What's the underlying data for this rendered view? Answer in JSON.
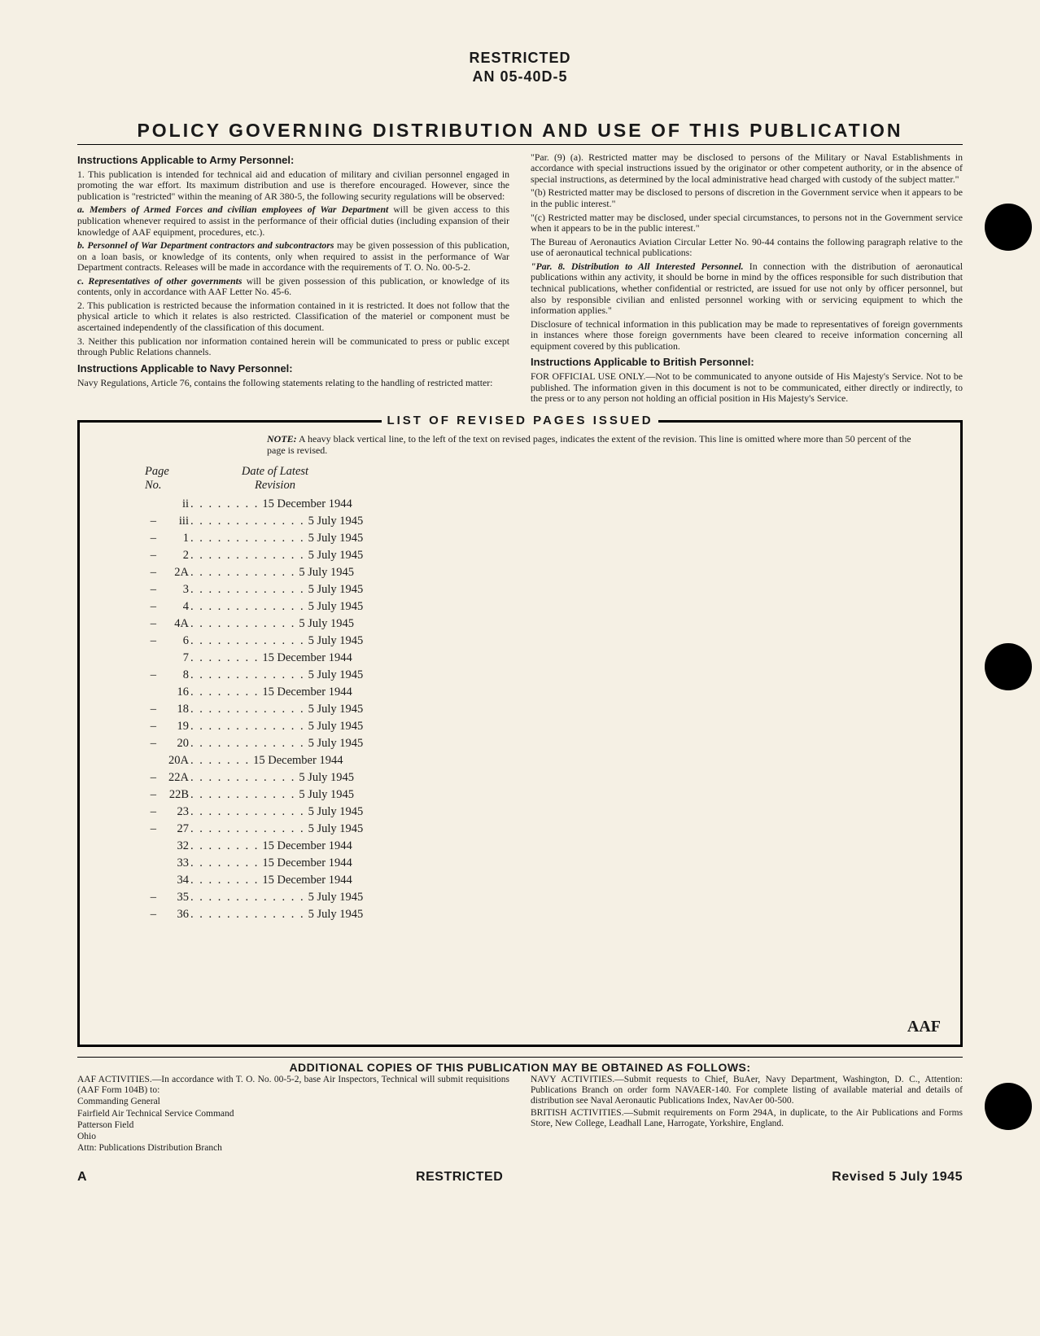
{
  "header": {
    "restricted": "RESTRICTED",
    "docnum": "AN 05-40D-5"
  },
  "policy_title": "POLICY GOVERNING DISTRIBUTION AND USE OF THIS PUBLICATION",
  "left": {
    "h1": "Instructions Applicable to Army Personnel:",
    "p1": "1. This publication is intended for technical aid and education of military and civilian personnel engaged in promoting the war effort. Its maximum distribution and use is therefore encouraged. However, since the publication is \"restricted\" within the meaning of AR 380-5, the following security regulations will be observed:",
    "pa_lead": "a. Members of Armed Forces and civilian employees of War Department",
    "pa_rest": " will be given access to this publication whenever required to assist in the performance of their official duties (including expansion of their knowledge of AAF equipment, procedures, etc.).",
    "pb_lead": "b. Personnel of War Department contractors and subcontractors",
    "pb_rest": " may be given possession of this publication, on a loan basis, or knowledge of its contents, only when required to assist in the performance of War Department contracts. Releases will be made in accordance with the requirements of T. O. No. 00-5-2.",
    "pc_lead": "c. Representatives of other governments",
    "pc_rest": " will be given possession of this publication, or knowledge of its contents, only in accordance with AAF Letter No. 45-6.",
    "p2": "2. This publication is restricted because the information contained in it is restricted. It does not follow that the physical article to which it relates is also restricted. Classification of the materiel or component must be ascertained independently of the classification of this document.",
    "p3": "3. Neither this publication nor information contained herein will be communicated to press or public except through Public Relations channels.",
    "h2": "Instructions Applicable to Navy Personnel:",
    "p4": "Navy Regulations, Article 76, contains the following statements relating to the handling of restricted matter:"
  },
  "right": {
    "p1": "\"Par. (9) (a). Restricted matter may be disclosed to persons of the Military or Naval Establishments in accordance with special instructions issued by the originator or other competent authority, or in the absence of special instructions, as determined by the local administrative head charged with custody of the subject matter.\"",
    "p2": "\"(b) Restricted matter may be disclosed to persons of discretion in the Government service when it appears to be in the public interest.\"",
    "p3": "\"(c) Restricted matter may be disclosed, under special circumstances, to persons not in the Government service when it appears to be in the public interest.\"",
    "p4": "The Bureau of Aeronautics Aviation Circular Letter No. 90-44 contains the following paragraph relative to the use of aeronautical technical publications:",
    "p5_lead": "\"Par. 8. Distribution to All Interested Personnel.",
    "p5_rest": " In connection with the distribution of aeronautical publications within any activity, it should be borne in mind by the offices responsible for such distribution that technical publications, whether confidential or restricted, are issued for use not only by officer personnel, but also by responsible civilian and enlisted personnel working with or servicing equipment to which the information applies.\"",
    "p6": "Disclosure of technical information in this publication may be made to representatives of foreign governments in instances where those foreign governments have been cleared to receive information concerning all equipment covered by this publication.",
    "h1": "Instructions Applicable to British Personnel:",
    "p7": "FOR OFFICIAL USE ONLY.—Not to be communicated to anyone outside of His Majesty's Service. Not to be published. The information given in this document is not to be communicated, either directly or indirectly, to the press or to any person not holding an official position in His Majesty's Service."
  },
  "revbox": {
    "title": "LIST OF REVISED PAGES ISSUED",
    "note_label": "NOTE:",
    "note": " A heavy black vertical line, to the left of the text on revised pages, indicates the extent of the revision. This line is omitted where more than 50 percent of the page is revised.",
    "col_page_1": "Page",
    "col_page_2": "No.",
    "col_date_1": "Date of Latest",
    "col_date_2": "Revision",
    "rows": [
      {
        "dash": "",
        "page": "ii",
        "dots": ". . . . . . . .",
        "date": "15 December 1944"
      },
      {
        "dash": "–",
        "page": "iii",
        "dots": ". . . . . . . . . . . . .",
        "date": "5 July 1945"
      },
      {
        "dash": "–",
        "page": "1",
        "dots": ". . . . . . . . . . . . .",
        "date": "5 July 1945"
      },
      {
        "dash": "–",
        "page": "2",
        "dots": ". . . . . . . . . . . . .",
        "date": "5 July 1945"
      },
      {
        "dash": "–",
        "page": "2A",
        "dots": ". . . . . . . . . . . .",
        "date": "5 July 1945"
      },
      {
        "dash": "–",
        "page": "3",
        "dots": ". . . . . . . . . . . . .",
        "date": "5 July 1945"
      },
      {
        "dash": "–",
        "page": "4",
        "dots": ". . . . . . . . . . . . .",
        "date": "5 July 1945"
      },
      {
        "dash": "–",
        "page": "4A",
        "dots": ". . . . . . . . . . . .",
        "date": "5 July 1945"
      },
      {
        "dash": "–",
        "page": "6",
        "dots": ". . . . . . . . . . . . .",
        "date": "5 July 1945"
      },
      {
        "dash": "",
        "page": "7",
        "dots": ". . . . . . . .",
        "date": "15 December 1944"
      },
      {
        "dash": "–",
        "page": "8",
        "dots": ". . . . . . . . . . . . .",
        "date": "5 July 1945"
      },
      {
        "dash": "",
        "page": "16",
        "dots": ". . . . . . . .",
        "date": "15 December 1944"
      },
      {
        "dash": "–",
        "page": "18",
        "dots": ". . . . . . . . . . . . .",
        "date": "5 July 1945"
      },
      {
        "dash": "–",
        "page": "19",
        "dots": ". . . . . . . . . . . . .",
        "date": "5 July 1945"
      },
      {
        "dash": "–",
        "page": "20",
        "dots": ". . . . . . . . . . . . .",
        "date": "5 July 1945"
      },
      {
        "dash": "",
        "page": "20A",
        "dots": ". . . . . . .",
        "date": "15 December 1944"
      },
      {
        "dash": "–",
        "page": "22A",
        "dots": ". . . . . . . . . . . .",
        "date": "5 July 1945"
      },
      {
        "dash": "–",
        "page": "22B",
        "dots": ". . . . . . . . . . . .",
        "date": "5 July 1945"
      },
      {
        "dash": "–",
        "page": "23",
        "dots": ". . . . . . . . . . . . .",
        "date": "5 July 1945"
      },
      {
        "dash": "–",
        "page": "27",
        "dots": ". . . . . . . . . . . . .",
        "date": "5 July 1945"
      },
      {
        "dash": "",
        "page": "32",
        "dots": ". . . . . . . .",
        "date": "15 December 1944"
      },
      {
        "dash": "",
        "page": "33",
        "dots": ". . . . . . . .",
        "date": "15 December 1944"
      },
      {
        "dash": "",
        "page": "34",
        "dots": ". . . . . . . .",
        "date": "15 December 1944"
      },
      {
        "dash": "–",
        "page": "35",
        "dots": ". . . . . . . . . . . . .",
        "date": "5 July 1945"
      },
      {
        "dash": "–",
        "page": "36",
        "dots": ". . . . . . . . . . . . .",
        "date": "5 July 1945"
      }
    ],
    "aaf": "AAF"
  },
  "addl": {
    "title": "ADDITIONAL COPIES OF THIS PUBLICATION MAY BE OBTAINED AS FOLLOWS:",
    "left1": "AAF ACTIVITIES.—In accordance with T. O. No. 00-5-2, base Air Inspectors, Technical will submit requisitions (AAF Form 104B) to:",
    "addr1": "Commanding General",
    "addr2": "Fairfield Air Technical Service Command",
    "addr3": "Patterson Field",
    "addr4": "        Ohio",
    "addr5": "Attn: Publications Distribution Branch",
    "right1": "NAVY ACTIVITIES.—Submit requests to Chief, BuAer, Navy Department, Washington, D. C., Attention: Publications Branch on order form NAVAER-140. For complete listing of available material and details of distribution see Naval Aeronautic Publications Index, NavAer 00-500.",
    "right2": "BRITISH ACTIVITIES.—Submit requirements on Form 294A, in duplicate, to the Air Publications and Forms Store, New College, Leadhall Lane, Harrogate, Yorkshire, England."
  },
  "bottom": {
    "left": "A",
    "center": "RESTRICTED",
    "right": "Revised 5 July 1945"
  }
}
